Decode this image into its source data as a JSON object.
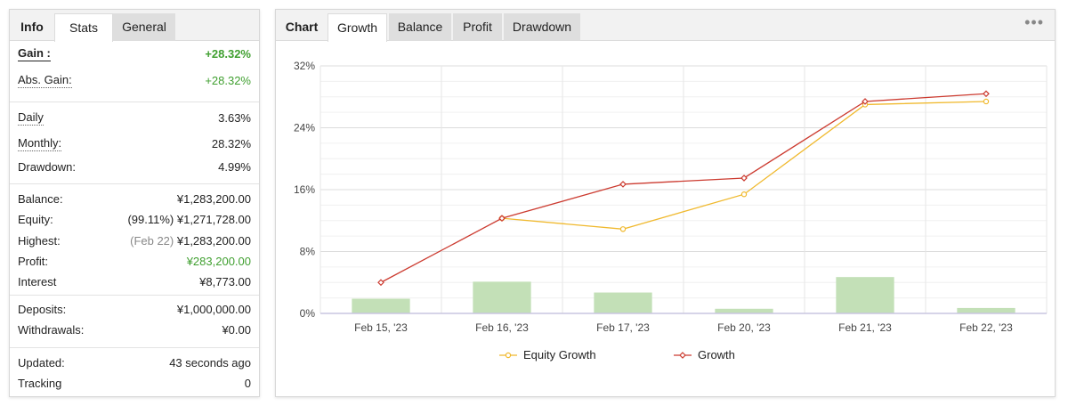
{
  "left": {
    "tabs": [
      {
        "label": "Info",
        "style": "bold"
      },
      {
        "label": "Stats",
        "style": "active"
      },
      {
        "label": "General",
        "style": "grey"
      }
    ],
    "groups": [
      [
        {
          "label": "Gain :",
          "value": "+28.32%",
          "label_style": "ub",
          "value_style": "green bold"
        },
        {
          "label": "Abs. Gain:",
          "value": "+28.32%",
          "label_style": "u",
          "value_style": "green"
        }
      ],
      [
        {
          "label": "Daily",
          "value": "3.63%",
          "label_style": "u"
        },
        {
          "label": "Monthly:",
          "value": "28.32%",
          "label_style": "u"
        },
        {
          "label": "Drawdown:",
          "value": "4.99%"
        }
      ],
      [
        {
          "label": "Balance:",
          "value": "¥1,283,200.00"
        },
        {
          "label": "Equity:",
          "prefix": "(99.11%)",
          "value": "¥1,271,728.00"
        },
        {
          "label": "Highest:",
          "prefix": "(Feb 22)",
          "prefix_style": "grey",
          "value": "¥1,283,200.00"
        },
        {
          "label": "Profit:",
          "value": "¥283,200.00",
          "value_style": "green"
        },
        {
          "label": "Interest",
          "value": "¥8,773.00"
        }
      ],
      [
        {
          "label": "Deposits:",
          "value": "¥1,000,000.00"
        },
        {
          "label": "Withdrawals:",
          "value": "¥0.00"
        }
      ],
      [
        {
          "label": "Updated:",
          "value": "43 seconds ago"
        },
        {
          "label": "Tracking",
          "value": "0"
        }
      ]
    ]
  },
  "right": {
    "tabs": [
      {
        "label": "Chart",
        "style": "bold"
      },
      {
        "label": "Growth",
        "style": "active"
      },
      {
        "label": "Balance",
        "style": "grey"
      },
      {
        "label": "Profit",
        "style": "grey"
      },
      {
        "label": "Drawdown",
        "style": "grey"
      }
    ],
    "menu_label": "•••"
  },
  "chart_data": {
    "type": "line",
    "categories": [
      "Feb 15, '23",
      "Feb 16, '23",
      "Feb 17, '23",
      "Feb 20, '23",
      "Feb 21, '23",
      "Feb 22, '23"
    ],
    "y_ticks": [
      "0%",
      "8%",
      "16%",
      "24%",
      "32%"
    ],
    "ylim": [
      0,
      32
    ],
    "grid": true,
    "legend_position": "bottom",
    "series": [
      {
        "name": "Equity Growth",
        "type": "line",
        "color": "#f0b92e",
        "marker": "circle",
        "values": [
          null,
          12.3,
          10.9,
          15.4,
          27.0,
          27.4
        ]
      },
      {
        "name": "Growth",
        "type": "line",
        "color": "#cc3b30",
        "marker": "diamond",
        "values": [
          4.0,
          12.3,
          16.7,
          17.5,
          27.4,
          28.4
        ]
      }
    ],
    "bars": {
      "color": "#c3e0b7",
      "values": [
        1.9,
        4.1,
        2.7,
        0.6,
        4.7,
        0.7
      ]
    }
  }
}
